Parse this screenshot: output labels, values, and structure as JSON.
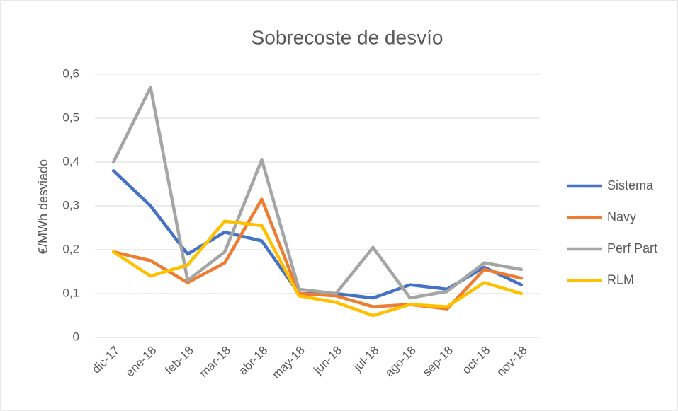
{
  "chart_data": {
    "type": "line",
    "title": "Sobrecoste de desvío",
    "y_label": "€/MWh desviado",
    "categories": [
      "dic-17",
      "ene-18",
      "feb-18",
      "mar-18",
      "abr-18",
      "may-18",
      "jun-18",
      "jul-18",
      "ago-18",
      "sep-18",
      "oct-18",
      "nov-18"
    ],
    "series": [
      {
        "name": "Sistema",
        "color": "#4472c4",
        "values": [
          0.38,
          0.3,
          0.19,
          0.24,
          0.22,
          0.1,
          0.1,
          0.09,
          0.12,
          0.11,
          0.16,
          0.12
        ]
      },
      {
        "name": "Navy",
        "color": "#ed7d31",
        "values": [
          0.195,
          0.175,
          0.125,
          0.17,
          0.315,
          0.1,
          0.095,
          0.07,
          0.075,
          0.065,
          0.155,
          0.135
        ]
      },
      {
        "name": "Perf Part",
        "color": "#a5a5a5",
        "values": [
          0.4,
          0.57,
          0.13,
          0.195,
          0.405,
          0.11,
          0.1,
          0.205,
          0.09,
          0.105,
          0.17,
          0.155
        ]
      },
      {
        "name": "RLM",
        "color": "#ffc000",
        "values": [
          0.195,
          0.14,
          0.165,
          0.265,
          0.255,
          0.095,
          0.08,
          0.05,
          0.075,
          0.07,
          0.125,
          0.1
        ]
      }
    ],
    "ylim": [
      0,
      0.6
    ],
    "yticks": [
      0,
      {
        "value": 0.1,
        "label": "0,1"
      },
      {
        "value": 0.2,
        "label": "0,2"
      },
      {
        "value": 0.3,
        "label": "0,3"
      },
      {
        "value": 0.4,
        "label": "0,4"
      },
      {
        "value": 0.5,
        "label": "0,5"
      },
      {
        "value": 0.6,
        "label": "0,6"
      }
    ],
    "grid": true,
    "legend": "right"
  }
}
